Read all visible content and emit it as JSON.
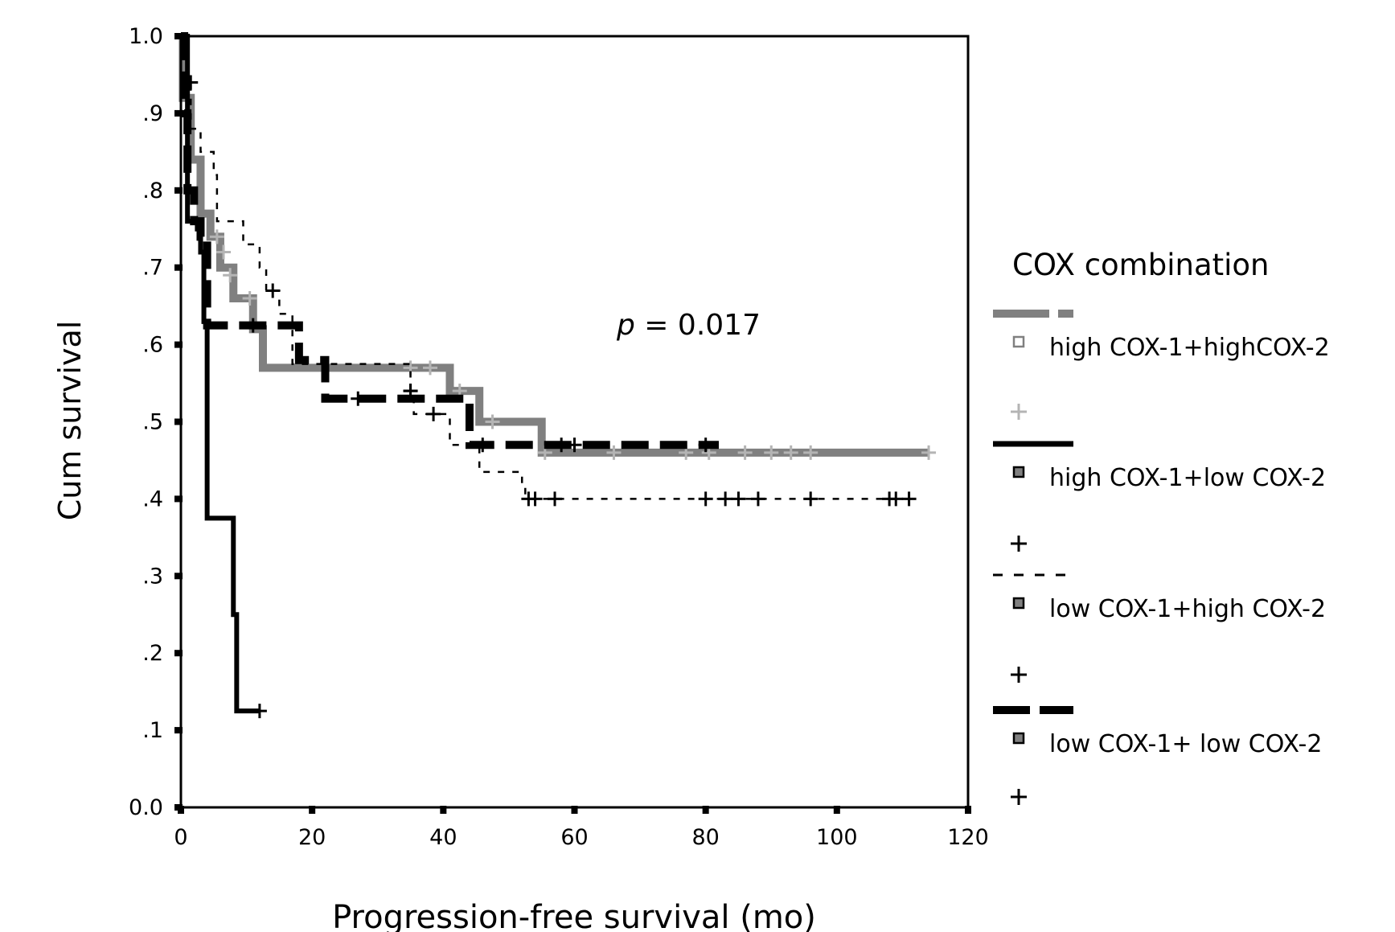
{
  "chart_data": {
    "type": "line",
    "subtype": "kaplan-meier step",
    "xlabel": "Progression-free survival (mo)",
    "ylabel": "Cum survival",
    "xlim": [
      0,
      120
    ],
    "ylim": [
      0,
      1
    ],
    "x_ticks": [
      "0",
      "20",
      "40",
      "60",
      "80",
      "100",
      "120"
    ],
    "y_ticks": [
      "0.0",
      ".1",
      ".2",
      ".3",
      ".4",
      ".5",
      ".6",
      ".7",
      ".8",
      ".9",
      "1.0"
    ],
    "annotation": {
      "italic": "p",
      "text": " = 0.017"
    },
    "legend": {
      "title": "COX combination",
      "placement": "right"
    },
    "grid": false,
    "series": [
      {
        "name": "high COX-1+highCOX-2",
        "color": "#808080",
        "censor_color": "#b4b4b4",
        "style": "dash-dot-thick",
        "steps": [
          [
            0,
            1.0
          ],
          [
            0.3,
            0.92
          ],
          [
            1.5,
            0.84
          ],
          [
            3,
            0.77
          ],
          [
            4.5,
            0.74
          ],
          [
            6,
            0.7
          ],
          [
            8,
            0.66
          ],
          [
            11,
            0.62
          ],
          [
            12.5,
            0.57
          ],
          [
            41,
            0.54
          ],
          [
            45.5,
            0.5
          ],
          [
            55,
            0.46
          ]
        ],
        "end": 114,
        "censored": [
          [
            5.5,
            0.74
          ],
          [
            6.5,
            0.72
          ],
          [
            7.5,
            0.69
          ],
          [
            10.5,
            0.66
          ],
          [
            35,
            0.57
          ],
          [
            38,
            0.57
          ],
          [
            42.5,
            0.54
          ],
          [
            47.5,
            0.5
          ],
          [
            55.5,
            0.46
          ],
          [
            66,
            0.46
          ],
          [
            77,
            0.46
          ],
          [
            80.5,
            0.46
          ],
          [
            86,
            0.46
          ],
          [
            90,
            0.46
          ],
          [
            93,
            0.46
          ],
          [
            96,
            0.46
          ],
          [
            114,
            0.46
          ]
        ]
      },
      {
        "name": "high COX-1+low COX-2",
        "color": "#000000",
        "censor_color": "#000000",
        "style": "solid",
        "steps": [
          [
            0,
            1.0
          ],
          [
            1,
            0.76
          ],
          [
            2.5,
            0.75
          ],
          [
            3,
            0.72
          ],
          [
            3.5,
            0.63
          ],
          [
            4,
            0.375
          ],
          [
            8,
            0.25
          ],
          [
            8.5,
            0.125
          ]
        ],
        "end": 12,
        "censored": [
          [
            12,
            0.125
          ]
        ]
      },
      {
        "name": "low COX-1+high COX-2",
        "color": "#000000",
        "censor_color": "#000000",
        "style": "dashed-thin",
        "steps": [
          [
            0,
            1.0
          ],
          [
            1,
            0.94
          ],
          [
            1.5,
            0.88
          ],
          [
            3,
            0.85
          ],
          [
            5,
            0.82
          ],
          [
            5.5,
            0.76
          ],
          [
            9.5,
            0.73
          ],
          [
            12,
            0.7
          ],
          [
            13,
            0.67
          ],
          [
            15,
            0.64
          ],
          [
            17,
            0.575
          ],
          [
            35,
            0.54
          ],
          [
            35.5,
            0.51
          ],
          [
            41,
            0.47
          ],
          [
            45.5,
            0.435
          ],
          [
            52,
            0.42
          ],
          [
            52.5,
            0.4
          ]
        ],
        "end": 112,
        "censored": [
          [
            1.5,
            0.94
          ],
          [
            14,
            0.67
          ],
          [
            35,
            0.54
          ],
          [
            38.5,
            0.51
          ],
          [
            53,
            0.4
          ],
          [
            54,
            0.4
          ],
          [
            57,
            0.4
          ],
          [
            80,
            0.4
          ],
          [
            83,
            0.4
          ],
          [
            85,
            0.4
          ],
          [
            88,
            0.4
          ],
          [
            96,
            0.4
          ],
          [
            108,
            0.4
          ],
          [
            109,
            0.4
          ],
          [
            111,
            0.4
          ]
        ]
      },
      {
        "name": "low COX-1+ low COX-2",
        "color": "#000000",
        "censor_color": "#000000",
        "style": "dashed-thick",
        "steps": [
          [
            0,
            1.0
          ],
          [
            0.5,
            0.9
          ],
          [
            1,
            0.8
          ],
          [
            2,
            0.76
          ],
          [
            3,
            0.74
          ],
          [
            4,
            0.625
          ],
          [
            18,
            0.58
          ],
          [
            22,
            0.53
          ],
          [
            44,
            0.47
          ]
        ],
        "end": 82,
        "censored": [
          [
            11,
            0.625
          ],
          [
            27,
            0.53
          ],
          [
            35,
            0.54
          ],
          [
            46,
            0.47
          ],
          [
            58,
            0.47
          ],
          [
            60,
            0.47
          ],
          [
            80,
            0.47
          ]
        ]
      }
    ]
  }
}
